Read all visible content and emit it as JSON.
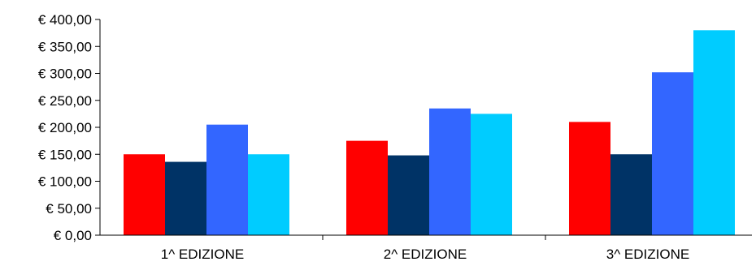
{
  "chart_data": {
    "type": "bar",
    "title": "",
    "xlabel": "",
    "ylabel": "",
    "categories": [
      "1^ EDIZIONE",
      "2^ EDIZIONE",
      "3^ EDIZIONE"
    ],
    "series": [
      {
        "color": "#ff0000",
        "values": [
          150,
          175,
          210
        ]
      },
      {
        "color": "#003366",
        "values": [
          136,
          148,
          150
        ]
      },
      {
        "color": "#3366ff",
        "values": [
          205,
          235,
          302
        ]
      },
      {
        "color": "#00ccff",
        "values": [
          150,
          225,
          380
        ]
      }
    ],
    "ylim": [
      0,
      400
    ],
    "yticks": [
      {
        "value": 0,
        "label": "€ 0,00"
      },
      {
        "value": 50,
        "label": "€ 50,00"
      },
      {
        "value": 100,
        "label": "€ 100,00"
      },
      {
        "value": 150,
        "label": "€ 150,00"
      },
      {
        "value": 200,
        "label": "€ 200,00"
      },
      {
        "value": 250,
        "label": "€ 250,00"
      },
      {
        "value": 300,
        "label": "€ 300,00"
      },
      {
        "value": 350,
        "label": "€ 350,00"
      },
      {
        "value": 400,
        "label": "€ 400,00"
      }
    ],
    "grid": false,
    "legend": "none"
  }
}
